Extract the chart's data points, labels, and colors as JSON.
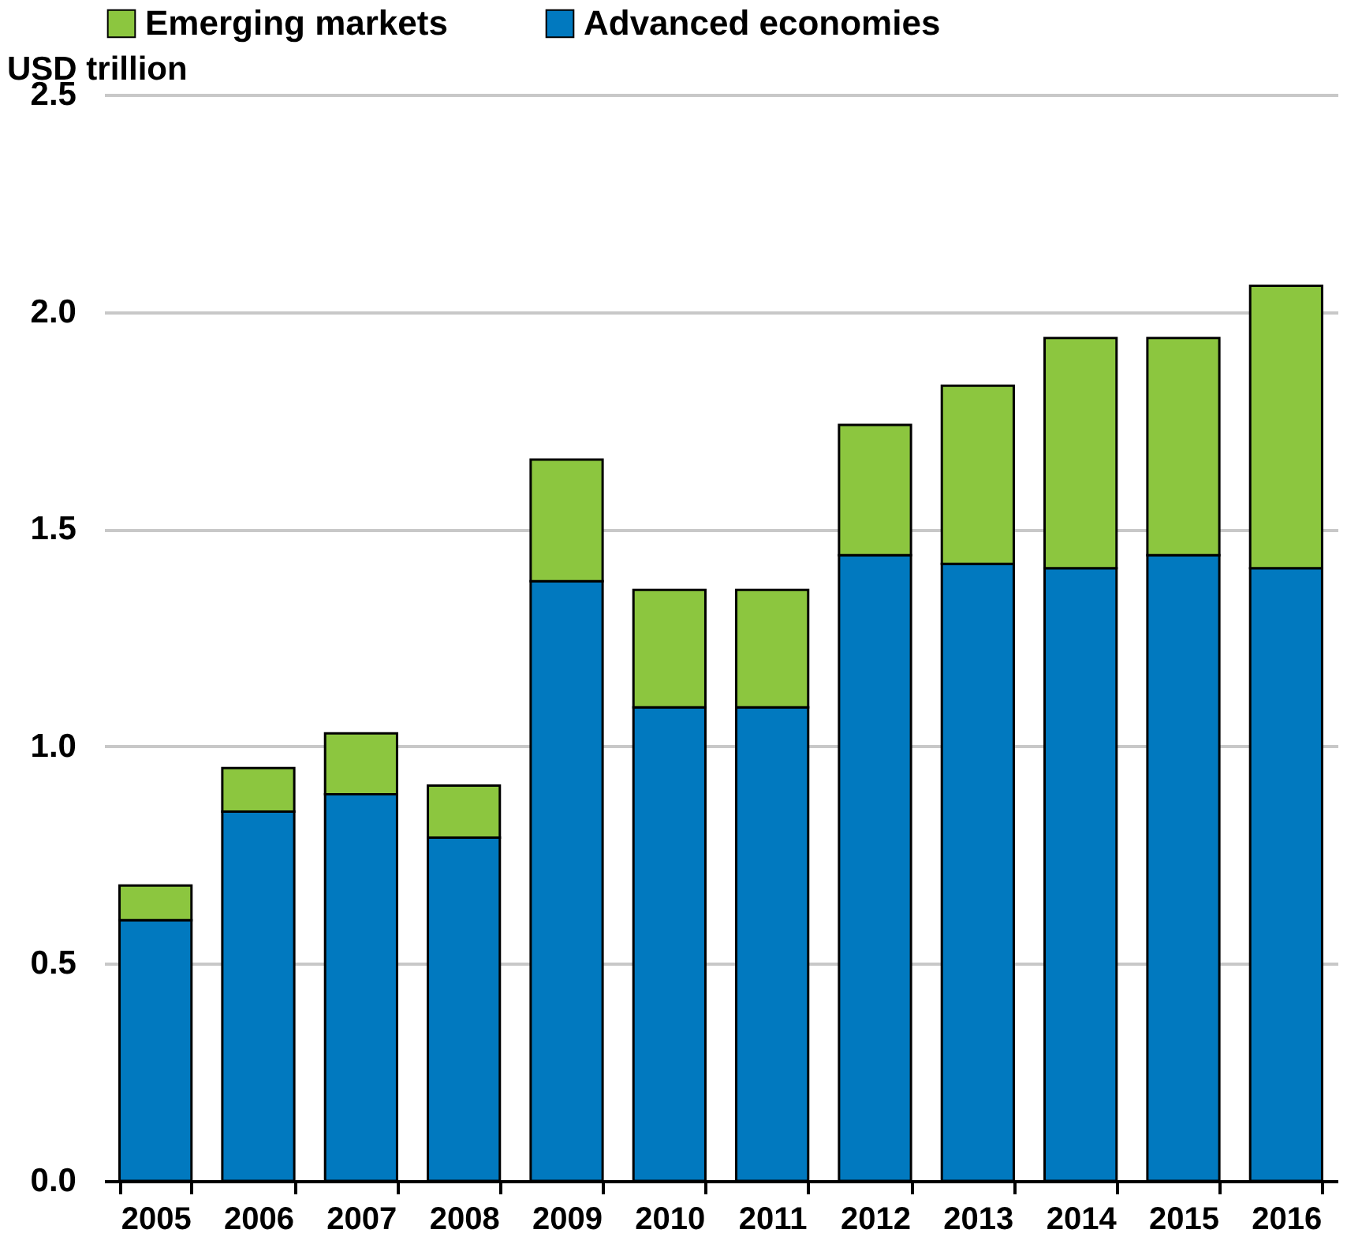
{
  "chart_data": {
    "type": "bar",
    "stacked": true,
    "ylabel": "USD trillion",
    "categories": [
      "2005",
      "2006",
      "2007",
      "2008",
      "2009",
      "2010",
      "2011",
      "2012",
      "2013",
      "2014",
      "2015",
      "2016"
    ],
    "series": [
      {
        "name": "Advanced economies",
        "color": "#0179bf",
        "values": [
          0.6,
          0.85,
          0.89,
          0.79,
          1.38,
          1.09,
          1.09,
          1.44,
          1.42,
          1.41,
          1.44,
          1.41
        ]
      },
      {
        "name": "Emerging markets",
        "color": "#8cc63f",
        "values": [
          0.08,
          0.1,
          0.14,
          0.12,
          0.28,
          0.27,
          0.27,
          0.3,
          0.41,
          0.53,
          0.5,
          0.65
        ]
      }
    ],
    "ylim": [
      0,
      2.5
    ],
    "yticks": [
      {
        "value": 0,
        "label": "0.0"
      },
      {
        "value": 0.5,
        "label": "0.5"
      },
      {
        "value": 1,
        "label": "1.0"
      },
      {
        "value": 1.5,
        "label": "1.5"
      },
      {
        "value": 2,
        "label": "2.0"
      },
      {
        "value": 2.5,
        "label": "2.5"
      }
    ],
    "grid": "y",
    "legend": "top"
  }
}
